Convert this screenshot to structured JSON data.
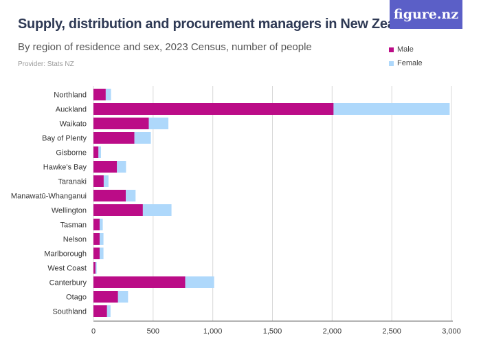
{
  "header": {
    "logo": "figure.nz",
    "title": "Supply, distribution and procurement managers in New Zealand",
    "subtitle": "By region of residence and sex, 2023 Census, number of people",
    "provider": "Provider: Stats NZ"
  },
  "chart_data": {
    "type": "bar",
    "orientation": "horizontal",
    "stacked": true,
    "categories": [
      "Northland",
      "Auckland",
      "Waikato",
      "Bay of Plenty",
      "Gisborne",
      "Hawke's Bay",
      "Taranaki",
      "Manawatū-Whanganui",
      "Wellington",
      "Tasman",
      "Nelson",
      "Marlborough",
      "West Coast",
      "Canterbury",
      "Otago",
      "Southland"
    ],
    "series": [
      {
        "name": "Male",
        "color": "#bb0c87",
        "values": [
          103,
          2012,
          464,
          343,
          42,
          197,
          86,
          271,
          414,
          52,
          52,
          52,
          17,
          769,
          206,
          114
        ]
      },
      {
        "name": "Female",
        "color": "#aed8fb",
        "values": [
          44,
          973,
          164,
          138,
          21,
          76,
          40,
          82,
          240,
          26,
          32,
          32,
          10,
          242,
          84,
          29
        ]
      }
    ],
    "xlim": [
      0,
      3000
    ],
    "xticks": [
      0,
      500,
      1000,
      1500,
      2000,
      2500,
      3000
    ],
    "xtick_labels": [
      "0",
      "500",
      "1,000",
      "1,500",
      "2,000",
      "2,500",
      "3,000"
    ],
    "grid": true,
    "legend": "top-right"
  }
}
